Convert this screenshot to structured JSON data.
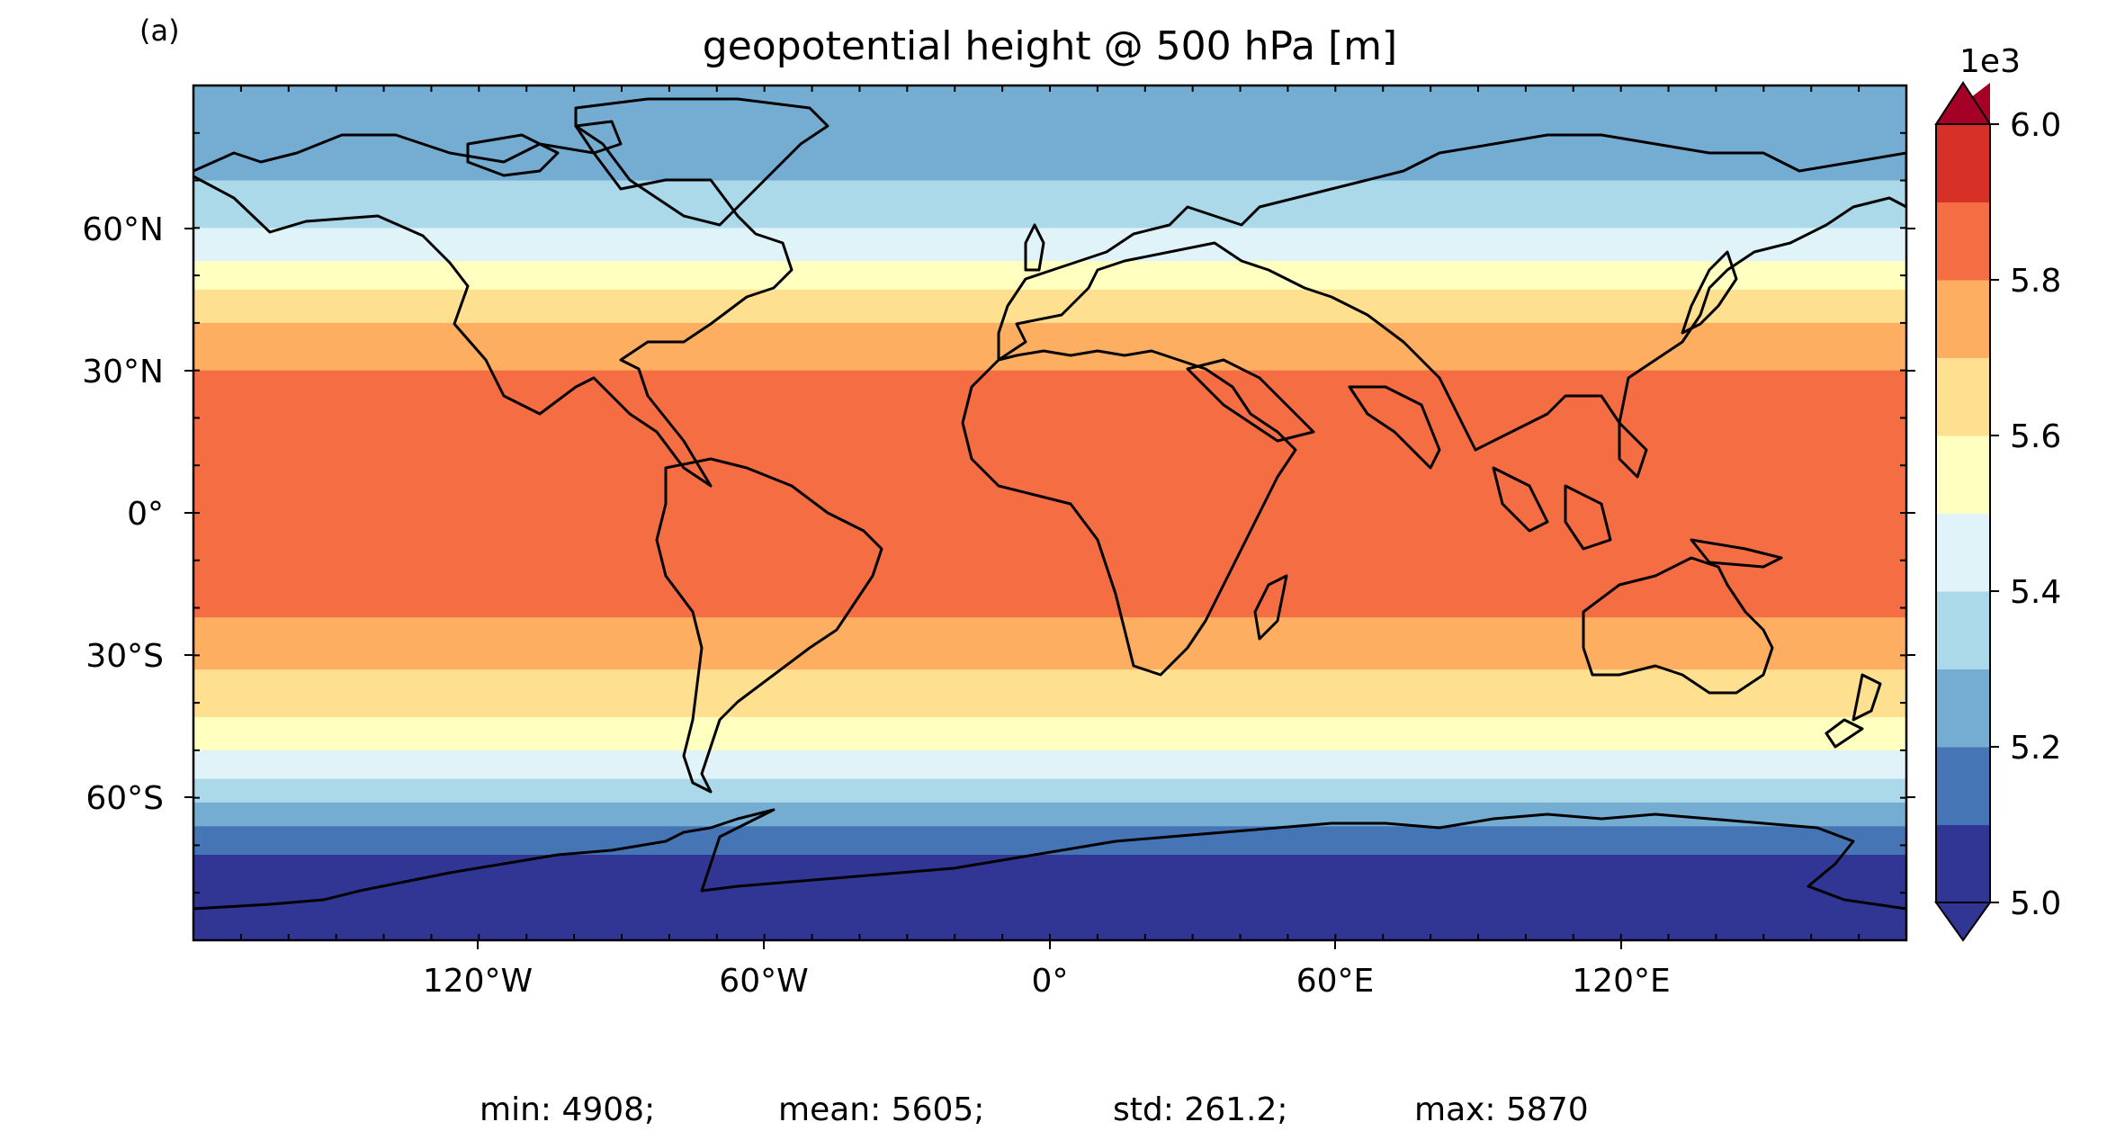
{
  "panel_label": "(a)",
  "title": "geopotential height @ 500 hPa [m]",
  "colorbar": {
    "multiplier": "1e3",
    "tick_labels": [
      "5.0",
      "5.2",
      "5.4",
      "5.6",
      "5.8",
      "6.0"
    ],
    "range": [
      5.0,
      6.0
    ],
    "extend": "both",
    "levels": 10,
    "colors": [
      "#313695",
      "#4575b4",
      "#74add1",
      "#abd9e9",
      "#e0f3f8",
      "#ffffbf",
      "#fee090",
      "#fdae61",
      "#f46d43",
      "#d73027"
    ],
    "under_color": "#313695",
    "over_color": "#a50026"
  },
  "axes": {
    "lon_labels": [
      "120°W",
      "60°W",
      "0°",
      "60°E",
      "120°E"
    ],
    "lat_labels": [
      "60°N",
      "30°N",
      "0°",
      "30°S",
      "60°S"
    ],
    "lon_range": [
      -180,
      180
    ],
    "lat_range": [
      -90,
      90
    ]
  },
  "field_bands": [
    {
      "from": 90,
      "to": 70,
      "color": "#74add1"
    },
    {
      "from": 70,
      "to": 60,
      "color": "#abd9e9"
    },
    {
      "from": 60,
      "to": 53,
      "color": "#e0f3f8"
    },
    {
      "from": 53,
      "to": 47,
      "color": "#ffffbf"
    },
    {
      "from": 47,
      "to": 40,
      "color": "#fee090"
    },
    {
      "from": 40,
      "to": 30,
      "color": "#fdae61"
    },
    {
      "from": 30,
      "to": -22,
      "color": "#f46d43"
    },
    {
      "from": -22,
      "to": -33,
      "color": "#fdae61"
    },
    {
      "from": -33,
      "to": -43,
      "color": "#fee090"
    },
    {
      "from": -43,
      "to": -50,
      "color": "#ffffbf"
    },
    {
      "from": -50,
      "to": -56,
      "color": "#e0f3f8"
    },
    {
      "from": -56,
      "to": -61,
      "color": "#abd9e9"
    },
    {
      "from": -61,
      "to": -66,
      "color": "#74add1"
    },
    {
      "from": -66,
      "to": -72,
      "color": "#4575b4"
    },
    {
      "from": -72,
      "to": -90,
      "color": "#313695"
    }
  ],
  "stats": {
    "min": "min: 4908;",
    "mean": "mean: 5605;",
    "std": "std: 261.2;",
    "max": "max: 5870"
  }
}
